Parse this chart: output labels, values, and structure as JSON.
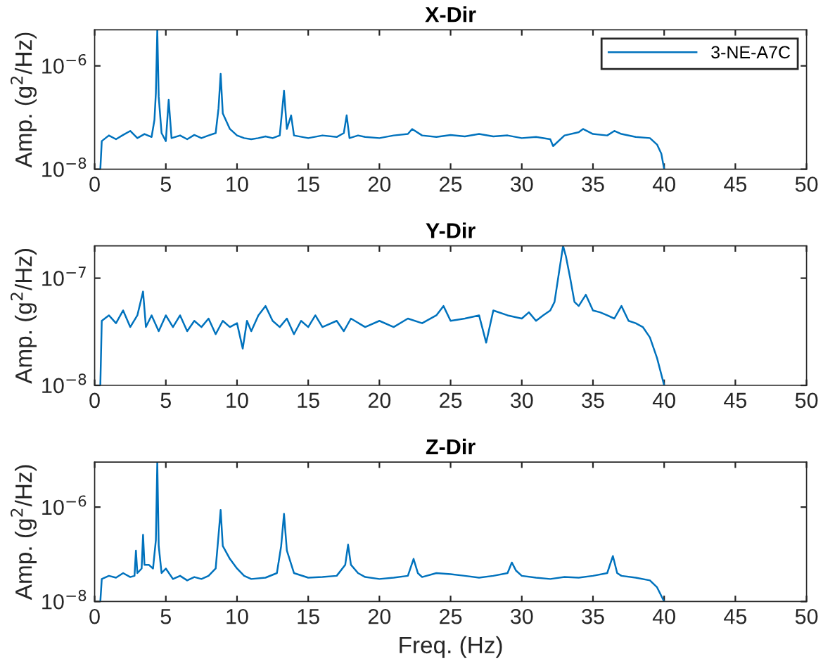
{
  "chart_data": [
    {
      "type": "line",
      "title": "X-Dir",
      "ylabel": "Amp. (g$^{2}$/Hz)",
      "log": "y",
      "legend": "top right",
      "xlim": [
        0,
        50
      ],
      "xticks": [
        0,
        5,
        10,
        15,
        20,
        25,
        30,
        35,
        40,
        45,
        50
      ],
      "ylim": [
        1e-08,
        5e-06
      ],
      "yticks": [
        {
          "value": 1e-08,
          "label": "10$^{−8}$"
        },
        {
          "value": 1e-06,
          "label": "10$^{−6}$"
        }
      ],
      "series": [
        {
          "name": "3-NE-A7C",
          "color": "#0072bd",
          "x": [
            0.4,
            0.5,
            1,
            1.5,
            2,
            2.5,
            3,
            3.5,
            4,
            4.2,
            4.3,
            4.4,
            4.5,
            4.7,
            5,
            5.2,
            5.4,
            6,
            6.5,
            7,
            7.5,
            8,
            8.5,
            8.7,
            8.85,
            9,
            9.5,
            10,
            10.5,
            11,
            11.5,
            12,
            12.5,
            13,
            13.3,
            13.5,
            13.8,
            14,
            15,
            16,
            17,
            17.5,
            17.7,
            17.9,
            18.5,
            19,
            20,
            21,
            22,
            22.3,
            23,
            24,
            25,
            26,
            27,
            28,
            29,
            30,
            31,
            32,
            32.2,
            33,
            34,
            34.3,
            35,
            36,
            36.5,
            37,
            38,
            39,
            39.5,
            39.8,
            40
          ],
          "values": [
            1e-08,
            3.5e-08,
            4.5e-08,
            3.8e-08,
            4.6e-08,
            5.5e-08,
            4e-08,
            4.8e-08,
            4.2e-08,
            9e-08,
            3e-07,
            5e-06,
            2.5e-07,
            5e-08,
            3.5e-08,
            2.2e-07,
            4e-08,
            4.5e-08,
            3.8e-08,
            4.6e-08,
            4e-08,
            4.5e-08,
            5e-08,
            1.5e-07,
            7e-07,
            1.2e-07,
            6e-08,
            4.5e-08,
            4e-08,
            3.8e-08,
            4e-08,
            4.3e-08,
            4e-08,
            4.5e-08,
            3.3e-07,
            6e-08,
            1.1e-07,
            4.5e-08,
            4e-08,
            4.5e-08,
            4.2e-08,
            5e-08,
            1.1e-07,
            4e-08,
            4.5e-08,
            4.2e-08,
            4e-08,
            4.5e-08,
            4.8e-08,
            6e-08,
            4.5e-08,
            4.2e-08,
            4.6e-08,
            4.3e-08,
            4.8e-08,
            4.3e-08,
            4.5e-08,
            4e-08,
            4.2e-08,
            3.8e-08,
            2.8e-08,
            4.5e-08,
            5.2e-08,
            6e-08,
            4.8e-08,
            4.5e-08,
            5.5e-08,
            4.8e-08,
            4.2e-08,
            4e-08,
            3e-08,
            2e-08,
            1e-08
          ]
        }
      ]
    },
    {
      "type": "line",
      "title": "Y-Dir",
      "ylabel": "Amp. (g$^{2}$/Hz)",
      "log": "y",
      "xlim": [
        0,
        50
      ],
      "xticks": [
        0,
        5,
        10,
        15,
        20,
        25,
        30,
        35,
        40,
        45,
        50
      ],
      "ylim": [
        1e-08,
        2e-07
      ],
      "yticks": [
        {
          "value": 1e-08,
          "label": "10$^{−8}$"
        },
        {
          "value": 1e-07,
          "label": "10$^{−7}$"
        }
      ],
      "series": [
        {
          "color": "#0072bd",
          "x": [
            0.4,
            0.5,
            1,
            1.5,
            2,
            2.5,
            3,
            3.4,
            3.6,
            4,
            4.5,
            5,
            5.5,
            6,
            6.5,
            7,
            7.5,
            8,
            8.5,
            9,
            9.5,
            10,
            10.4,
            10.7,
            11,
            11.5,
            12,
            12.5,
            13,
            13.5,
            14,
            14.5,
            15,
            15.5,
            16,
            17,
            17.5,
            18,
            19,
            20,
            21,
            22,
            23,
            24,
            24.5,
            25,
            26,
            27,
            27.5,
            28,
            29,
            30,
            30.5,
            31,
            31.5,
            32,
            32.3,
            32.6,
            32.9,
            33.1,
            33.4,
            33.7,
            34,
            34.5,
            35,
            35.5,
            36,
            36.5,
            37,
            37.5,
            38,
            38.5,
            39,
            39.5,
            40
          ],
          "values": [
            1e-08,
            4e-08,
            4.5e-08,
            3.8e-08,
            5e-08,
            3.5e-08,
            4.5e-08,
            7.5e-08,
            3.5e-08,
            4.5e-08,
            3.2e-08,
            4.5e-08,
            3.5e-08,
            4.5e-08,
            3.2e-08,
            4e-08,
            3.5e-08,
            4.2e-08,
            3e-08,
            4e-08,
            3.5e-08,
            3.8e-08,
            2.2e-08,
            4e-08,
            3.2e-08,
            4.5e-08,
            5.5e-08,
            4e-08,
            3.5e-08,
            4.2e-08,
            3e-08,
            4e-08,
            3.5e-08,
            4.5e-08,
            3.5e-08,
            4e-08,
            3.2e-08,
            4.2e-08,
            3.5e-08,
            4e-08,
            3.5e-08,
            4.2e-08,
            3.8e-08,
            4.5e-08,
            5.5e-08,
            4e-08,
            4.2e-08,
            4.5e-08,
            2.5e-08,
            5e-08,
            4.5e-08,
            4.2e-08,
            4.8e-08,
            4e-08,
            4.5e-08,
            5e-08,
            6e-08,
            1.1e-07,
            2e-07,
            1.6e-07,
            1e-07,
            6e-08,
            5.5e-08,
            7e-08,
            5e-08,
            4.8e-08,
            4.5e-08,
            4.2e-08,
            5.5e-08,
            4e-08,
            3.8e-08,
            3.5e-08,
            2.8e-08,
            1.8e-08,
            1e-08
          ]
        }
      ]
    },
    {
      "type": "line",
      "title": "Z-Dir",
      "xlabel": "Freq. (Hz)",
      "ylabel": "Amp. (g$^{2}$/Hz)",
      "log": "y",
      "xlim": [
        0,
        50
      ],
      "xticks": [
        0,
        5,
        10,
        15,
        20,
        25,
        30,
        35,
        40,
        45,
        50
      ],
      "ylim": [
        1e-08,
        9e-06
      ],
      "yticks": [
        {
          "value": 1e-08,
          "label": "10$^{−8}$"
        },
        {
          "value": 1e-06,
          "label": "10$^{−6}$"
        }
      ],
      "series": [
        {
          "color": "#0072bd",
          "x": [
            0.4,
            0.5,
            1,
            1.5,
            2,
            2.5,
            2.8,
            2.9,
            3.0,
            3.3,
            3.4,
            3.5,
            3.8,
            4.1,
            4.3,
            4.4,
            4.5,
            4.7,
            5,
            5.5,
            6,
            6.5,
            7,
            7.5,
            8,
            8.5,
            8.7,
            8.85,
            9,
            9.5,
            10,
            10.5,
            11,
            12,
            12.8,
            13.1,
            13.3,
            13.5,
            14,
            15,
            16,
            17,
            17.6,
            17.8,
            18,
            18.5,
            19,
            20,
            21,
            22,
            22.4,
            22.7,
            23,
            24,
            25,
            26,
            27,
            28,
            29,
            29.3,
            29.6,
            30,
            31,
            32,
            33,
            34,
            35,
            36,
            36.4,
            36.7,
            37,
            38,
            39,
            39.5,
            40
          ],
          "values": [
            1e-08,
            3e-08,
            3.5e-08,
            3.2e-08,
            4e-08,
            3.3e-08,
            3.5e-08,
            1.2e-07,
            4e-08,
            5e-08,
            2.6e-07,
            6e-08,
            6e-08,
            5e-08,
            2e-07,
            9e-06,
            1.5e-07,
            4e-08,
            5e-08,
            3e-08,
            3.5e-08,
            2.8e-08,
            3.3e-08,
            3e-08,
            3.5e-08,
            5e-08,
            2.5e-07,
            8.7e-07,
            1.5e-07,
            8e-08,
            5e-08,
            3.5e-08,
            3e-08,
            3.2e-08,
            4e-08,
            1.5e-07,
            7.2e-07,
            1.2e-07,
            4e-08,
            3.2e-08,
            3.3e-08,
            3.5e-08,
            6e-08,
            1.6e-07,
            6e-08,
            4e-08,
            3.3e-08,
            3e-08,
            3.2e-08,
            3.5e-08,
            8e-08,
            4e-08,
            3.3e-08,
            4e-08,
            3.8e-08,
            3.5e-08,
            3.2e-08,
            3.5e-08,
            4e-08,
            6.7e-08,
            4.5e-08,
            3.5e-08,
            3.2e-08,
            3e-08,
            3.3e-08,
            3.2e-08,
            3.5e-08,
            4e-08,
            9.2e-08,
            4e-08,
            3.5e-08,
            3.2e-08,
            2.8e-08,
            2e-08,
            1e-08
          ]
        }
      ]
    }
  ]
}
